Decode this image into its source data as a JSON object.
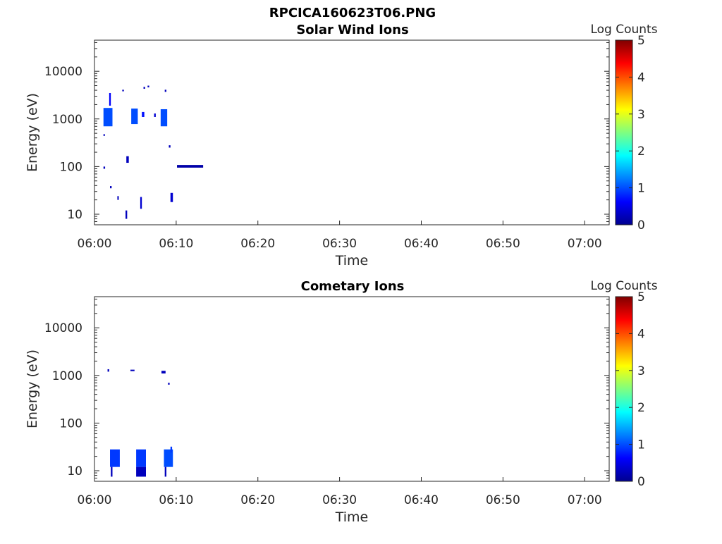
{
  "figure": {
    "title": "RPCICA160623T06.PNG"
  },
  "chart_data": [
    {
      "type": "heatmap",
      "title": "Solar Wind Ions",
      "xlabel": "Time",
      "ylabel": "Energy (eV)",
      "x_ticks": [
        "06:00",
        "06:10",
        "06:20",
        "06:30",
        "06:40",
        "06:50",
        "07:00"
      ],
      "xlim": [
        "06:00",
        "07:03"
      ],
      "y_ticks": [
        10,
        100,
        1000,
        10000
      ],
      "y_tick_labels": [
        "10",
        "100",
        "1000",
        "10000"
      ],
      "ylim": [
        6,
        45000
      ],
      "y_scale": "log",
      "colorbar": {
        "label": "Log Counts",
        "ticks": [
          "0",
          "1",
          "2",
          "3",
          "4",
          "5"
        ],
        "range": [
          0,
          5
        ],
        "colormap": "jet"
      },
      "cells": [
        {
          "t0": 1.1,
          "t1": 2.2,
          "e0": 700,
          "e1": 1700,
          "v": 1.0
        },
        {
          "t0": 4.5,
          "t1": 5.3,
          "e0": 780,
          "e1": 1650,
          "v": 1.0
        },
        {
          "t0": 8.1,
          "t1": 8.9,
          "e0": 700,
          "e1": 1600,
          "v": 1.0
        },
        {
          "t0": 1.8,
          "t1": 2.0,
          "e0": 1900,
          "e1": 3500,
          "v": 0.6
        },
        {
          "t0": 5.8,
          "t1": 6.1,
          "e0": 1100,
          "e1": 1400,
          "v": 0.7
        },
        {
          "t0": 7.3,
          "t1": 7.5,
          "e0": 1100,
          "e1": 1300,
          "v": 0.4
        },
        {
          "t0": 10.1,
          "t1": 13.3,
          "e0": 95,
          "e1": 108,
          "v": 0.2
        },
        {
          "t0": 3.8,
          "t1": 4.0,
          "e0": 8,
          "e1": 12,
          "v": 0.3
        },
        {
          "t0": 5.6,
          "t1": 5.8,
          "e0": 13,
          "e1": 23,
          "v": 0.4
        },
        {
          "t0": 9.3,
          "t1": 9.6,
          "e0": 18,
          "e1": 28,
          "v": 0.4
        },
        {
          "t0": 1.9,
          "t1": 2.1,
          "e0": 35,
          "e1": 39,
          "v": 0.3
        },
        {
          "t0": 2.8,
          "t1": 2.9,
          "e0": 20,
          "e1": 24,
          "v": 0.3
        },
        {
          "t0": 1.1,
          "t1": 1.3,
          "e0": 90,
          "e1": 100,
          "v": 0.3
        },
        {
          "t0": 1.1,
          "t1": 1.2,
          "e0": 440,
          "e1": 480,
          "v": 0.3
        },
        {
          "t0": 3.4,
          "t1": 3.6,
          "e0": 3800,
          "e1": 4100,
          "v": 0.3
        },
        {
          "t0": 6.0,
          "t1": 6.2,
          "e0": 4300,
          "e1": 4700,
          "v": 0.3
        },
        {
          "t0": 6.5,
          "t1": 6.7,
          "e0": 4600,
          "e1": 5000,
          "v": 0.3
        },
        {
          "t0": 8.6,
          "t1": 8.8,
          "e0": 3700,
          "e1": 4100,
          "v": 0.3
        },
        {
          "t0": 9.1,
          "t1": 9.3,
          "e0": 250,
          "e1": 280,
          "v": 0.3
        },
        {
          "t0": 3.9,
          "t1": 4.2,
          "e0": 120,
          "e1": 165,
          "v": 0.3
        }
      ]
    },
    {
      "type": "heatmap",
      "title": "Cometary Ions",
      "xlabel": "Time",
      "ylabel": "Energy (eV)",
      "x_ticks": [
        "06:00",
        "06:10",
        "06:20",
        "06:30",
        "06:40",
        "06:50",
        "07:00"
      ],
      "xlim": [
        "06:00",
        "07:03"
      ],
      "y_ticks": [
        10,
        100,
        1000,
        10000
      ],
      "y_tick_labels": [
        "10",
        "100",
        "1000",
        "10000"
      ],
      "ylim": [
        6,
        45000
      ],
      "y_scale": "log",
      "colorbar": {
        "label": "Log Counts",
        "ticks": [
          "0",
          "1",
          "2",
          "3",
          "4",
          "5"
        ],
        "range": [
          0,
          5
        ],
        "colormap": "jet"
      },
      "cells": [
        {
          "t0": 1.9,
          "t1": 3.1,
          "e0": 12,
          "e1": 28,
          "v": 0.9
        },
        {
          "t0": 5.1,
          "t1": 6.3,
          "e0": 12,
          "e1": 28,
          "v": 0.9
        },
        {
          "t0": 8.5,
          "t1": 9.6,
          "e0": 12,
          "e1": 28,
          "v": 1.0
        },
        {
          "t0": 9.3,
          "t1": 9.5,
          "e0": 24,
          "e1": 32,
          "v": 0.9
        },
        {
          "t0": 2.0,
          "t1": 2.2,
          "e0": 7.5,
          "e1": 12,
          "v": 0.3
        },
        {
          "t0": 5.1,
          "t1": 6.3,
          "e0": 7.5,
          "e1": 12,
          "v": 0.3
        },
        {
          "t0": 8.6,
          "t1": 8.8,
          "e0": 7.5,
          "e1": 12,
          "v": 0.3
        },
        {
          "t0": 1.6,
          "t1": 1.8,
          "e0": 1200,
          "e1": 1350,
          "v": 0.3
        },
        {
          "t0": 4.4,
          "t1": 4.9,
          "e0": 1230,
          "e1": 1320,
          "v": 0.3
        },
        {
          "t0": 8.2,
          "t1": 8.7,
          "e0": 1100,
          "e1": 1250,
          "v": 0.3
        },
        {
          "t0": 9.0,
          "t1": 9.2,
          "e0": 640,
          "e1": 700,
          "v": 0.3
        }
      ]
    }
  ]
}
